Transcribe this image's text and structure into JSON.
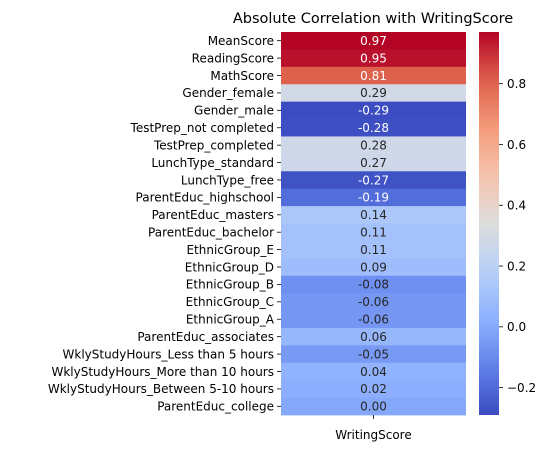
{
  "chart_data": {
    "type": "heatmap",
    "title": "Absolute Correlation with WritingScore",
    "xlabel": "",
    "ylabel": "",
    "columns": [
      "WritingScore"
    ],
    "rows": [
      "MeanScore",
      "ReadingScore",
      "MathScore",
      "Gender_female",
      "Gender_male",
      "TestPrep_not completed",
      "TestPrep_completed",
      "LunchType_standard",
      "LunchType_free",
      "ParentEduc_highschool",
      "ParentEduc_masters",
      "ParentEduc_bachelor",
      "EthnicGroup_E",
      "EthnicGroup_D",
      "EthnicGroup_B",
      "EthnicGroup_C",
      "EthnicGroup_A",
      "ParentEduc_associates",
      "WklyStudyHours_Less than 5 hours",
      "WklyStudyHours_More than 10 hours",
      "WklyStudyHours_Between 5-10 hours",
      "ParentEduc_college"
    ],
    "values": [
      0.97,
      0.95,
      0.81,
      0.29,
      -0.29,
      -0.28,
      0.28,
      0.27,
      -0.27,
      -0.19,
      0.14,
      0.11,
      0.11,
      0.09,
      -0.08,
      -0.06,
      -0.06,
      0.06,
      -0.05,
      0.04,
      0.02,
      0.0
    ],
    "colormap": "coolwarm",
    "colorbar": {
      "range": [
        -0.29,
        0.97
      ],
      "ticks": [
        -0.2,
        0.0,
        0.2,
        0.4,
        0.6,
        0.8
      ],
      "tick_labels": [
        "−0.2",
        "0.0",
        "0.2",
        "0.4",
        "0.6",
        "0.8"
      ]
    },
    "annotation_format": "0.00"
  }
}
